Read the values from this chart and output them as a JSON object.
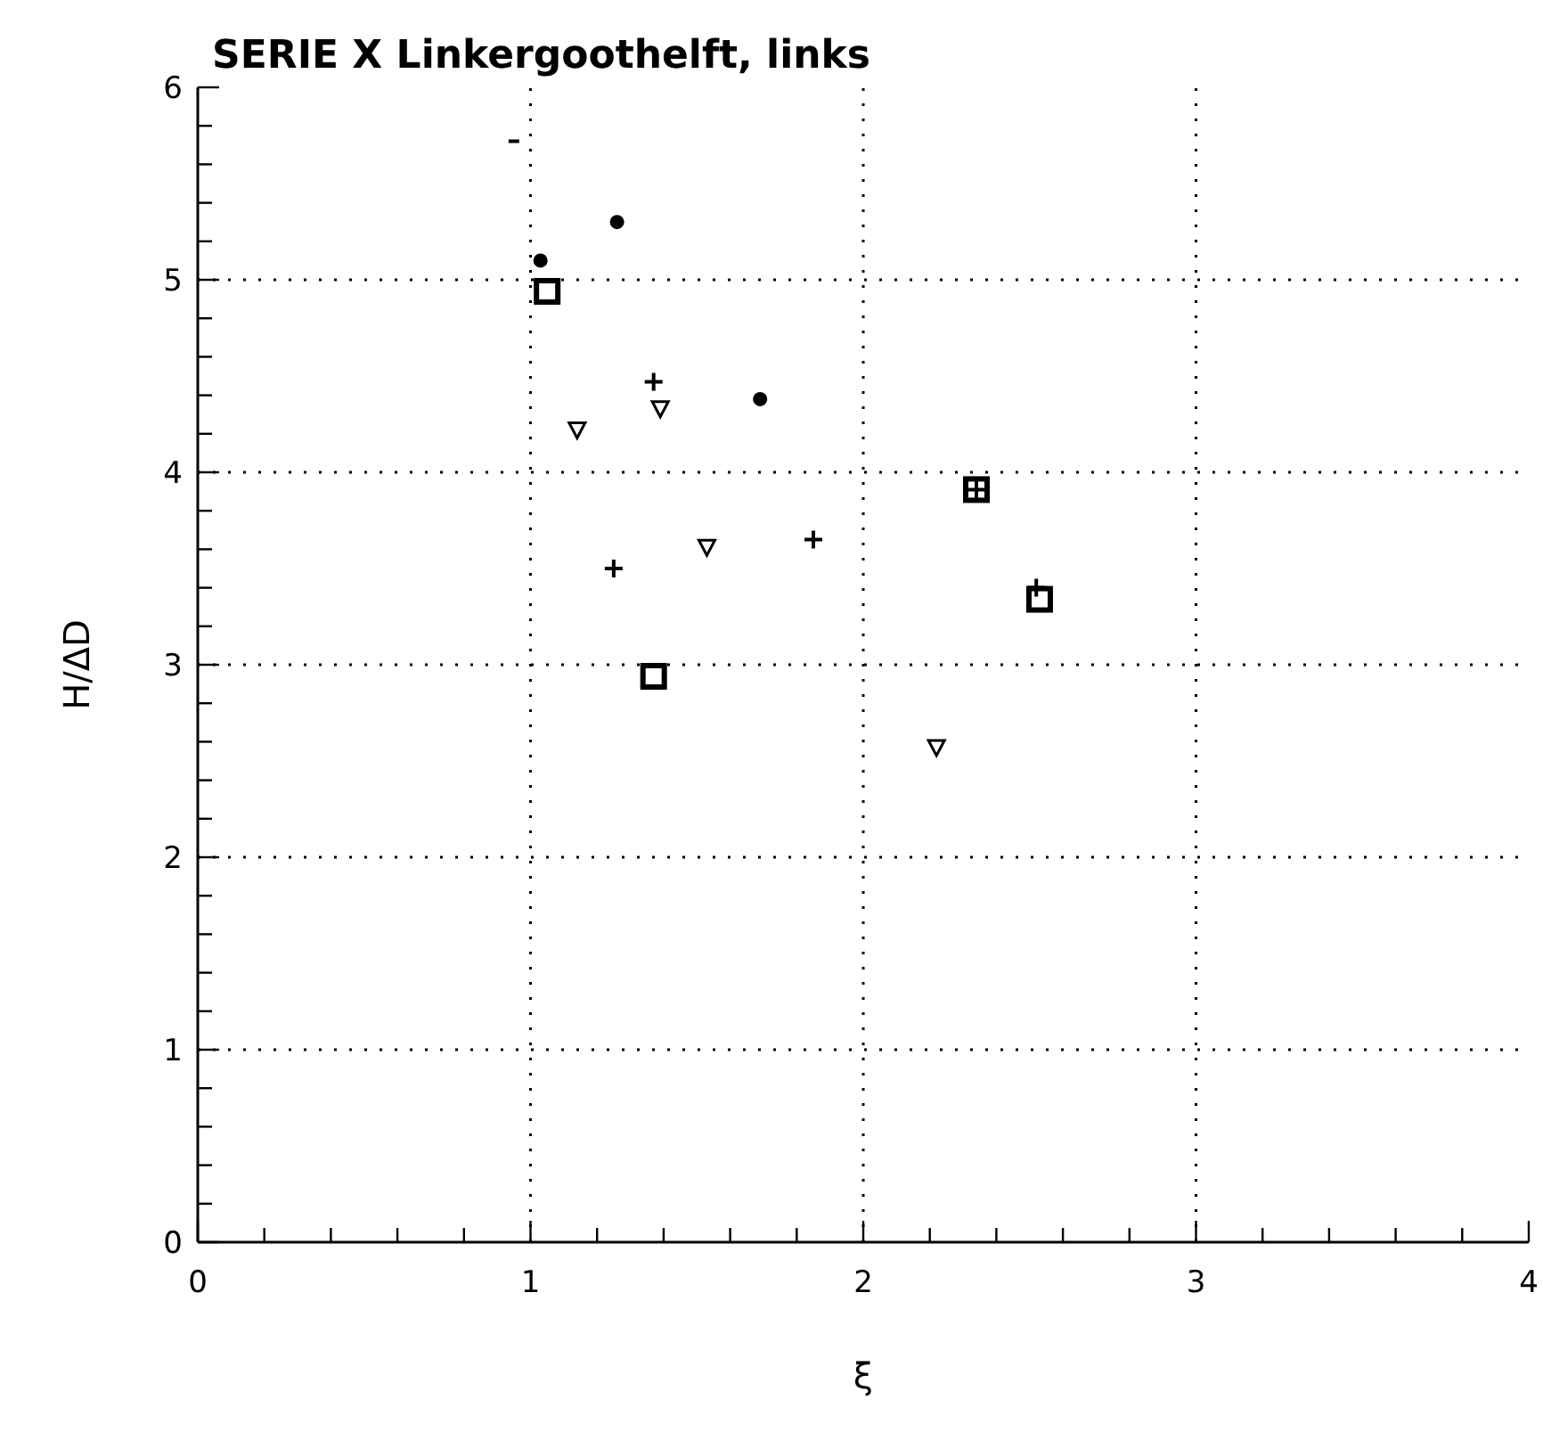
{
  "chart_data": {
    "type": "scatter",
    "title": "SERIE X Linkergoothelft, links",
    "xlabel": "ξ",
    "ylabel": "H/ΔD",
    "xlim": [
      0,
      4
    ],
    "ylim": [
      0,
      6
    ],
    "xticks": [
      0,
      {
        "value": 0.2,
        "label": null
      },
      {
        "value": 0.4,
        "label": null
      },
      {
        "value": 0.6,
        "label": null
      },
      {
        "value": 0.8,
        "label": null
      },
      1,
      {
        "value": 1.2,
        "label": null
      },
      {
        "value": 1.4,
        "label": null
      },
      {
        "value": 1.6,
        "label": null
      },
      {
        "value": 1.8,
        "label": null
      },
      2,
      {
        "value": 2.2,
        "label": null
      },
      {
        "value": 2.4,
        "label": null
      },
      {
        "value": 2.6,
        "label": null
      },
      {
        "value": 2.8,
        "label": null
      },
      3,
      {
        "value": 3.2,
        "label": null
      },
      {
        "value": 3.4,
        "label": null
      },
      {
        "value": 3.6,
        "label": null
      },
      {
        "value": 3.8,
        "label": null
      },
      4
    ],
    "yticks": [
      0,
      {
        "value": 0.2,
        "label": null
      },
      {
        "value": 0.4,
        "label": null
      },
      {
        "value": 0.6,
        "label": null
      },
      {
        "value": 0.8,
        "label": null
      },
      1,
      {
        "value": 1.2,
        "label": null
      },
      {
        "value": 1.4,
        "label": null
      },
      {
        "value": 1.6,
        "label": null
      },
      {
        "value": 1.8,
        "label": null
      },
      2,
      {
        "value": 2.2,
        "label": null
      },
      {
        "value": 2.4,
        "label": null
      },
      {
        "value": 2.6,
        "label": null
      },
      {
        "value": 2.8,
        "label": null
      },
      3,
      {
        "value": 3.2,
        "label": null
      },
      {
        "value": 3.4,
        "label": null
      },
      {
        "value": 3.6,
        "label": null
      },
      {
        "value": 3.8,
        "label": null
      },
      4,
      {
        "value": 4.2,
        "label": null
      },
      {
        "value": 4.4,
        "label": null
      },
      {
        "value": 4.6,
        "label": null
      },
      {
        "value": 4.8,
        "label": null
      },
      5,
      {
        "value": 5.2,
        "label": null
      },
      {
        "value": 5.4,
        "label": null
      },
      {
        "value": 5.6,
        "label": null
      },
      {
        "value": 5.8,
        "label": null
      },
      6
    ],
    "grid": true,
    "series": [
      {
        "color": "#000000",
        "marker": "circle",
        "x": [
          1.03,
          1.26,
          1.69
        ],
        "values": [
          5.1,
          5.3,
          4.38
        ]
      },
      {
        "color": "#000000",
        "marker": "square",
        "x": [
          1.05,
          1.37,
          2.34,
          2.53
        ],
        "values": [
          4.94,
          2.94,
          3.91,
          3.34
        ]
      },
      {
        "color": "#000000",
        "marker": "cross",
        "x": [
          1.37,
          1.25,
          1.85,
          2.34,
          2.52
        ],
        "values": [
          4.47,
          3.5,
          3.65,
          3.91,
          3.4
        ]
      },
      {
        "color": "#000000",
        "marker": "triangle",
        "x": [
          1.14,
          1.39,
          1.53,
          2.22
        ],
        "values": [
          4.22,
          4.33,
          3.61,
          2.57
        ]
      },
      {
        "color": "#000000",
        "x": [
          0.95
        ],
        "values": [
          5.72
        ]
      }
    ]
  }
}
